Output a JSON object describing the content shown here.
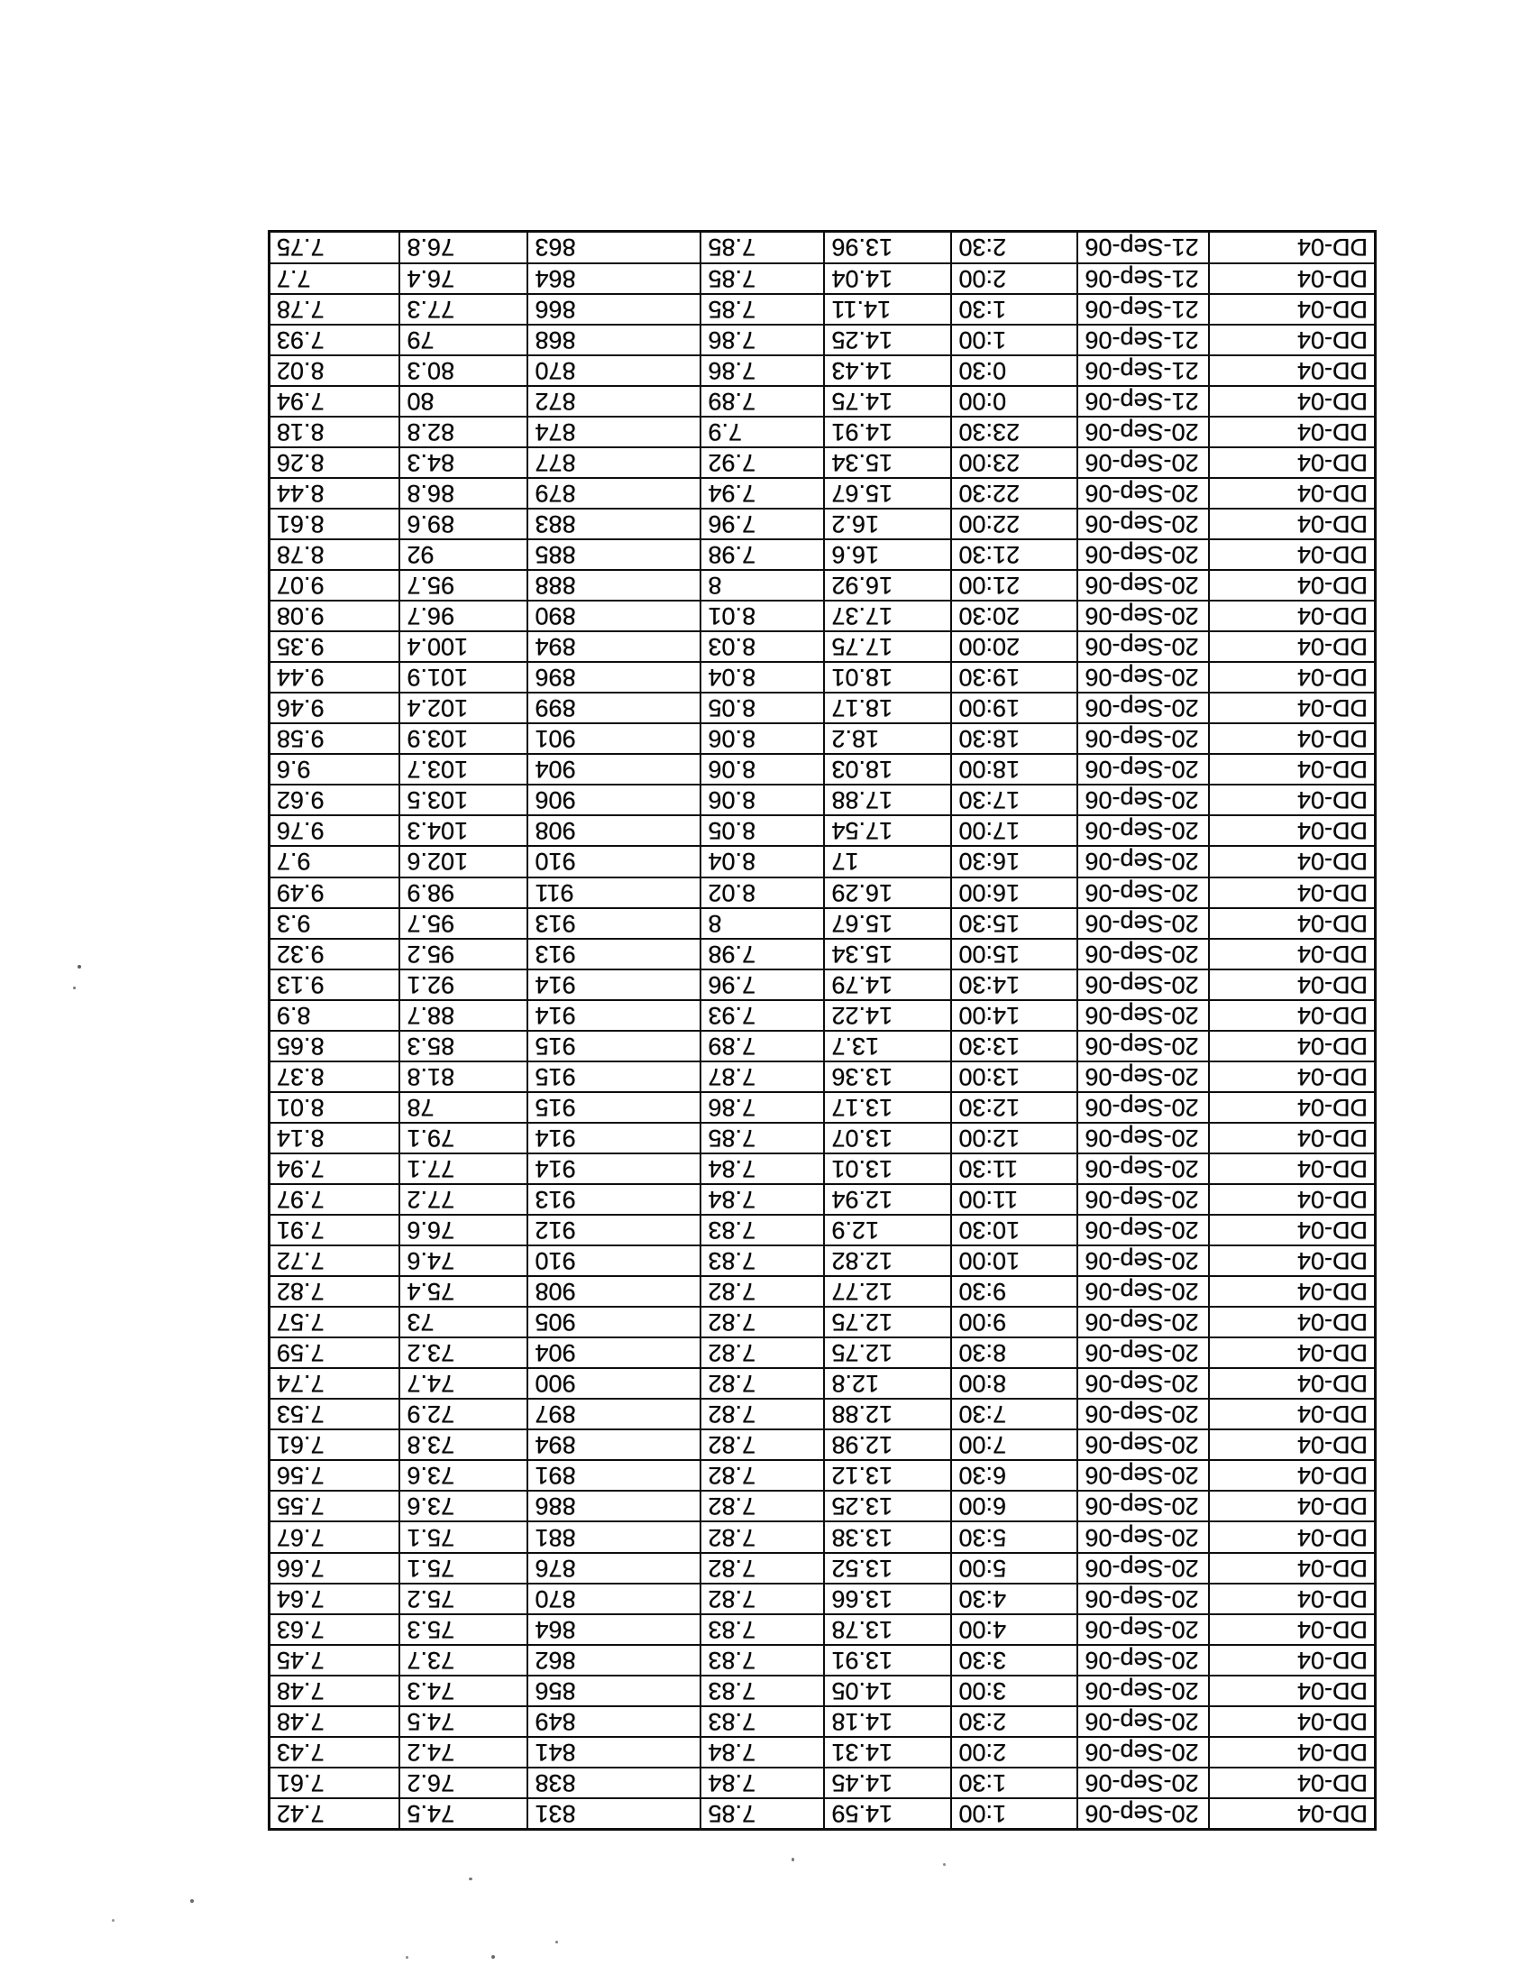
{
  "style": {
    "ink_color": "#161616",
    "paper_color": "#ffffff"
  },
  "table": {
    "orientation_note": "scanned upside down (rotated 180 degrees)",
    "site_label": "DD-04",
    "rows": [
      [
        "DD-04",
        "20-Sep-06",
        "1:00",
        "14.59",
        "7.85",
        "831",
        "74.5",
        "7.42"
      ],
      [
        "DD-04",
        "20-Sep-06",
        "1:30",
        "14.45",
        "7.84",
        "838",
        "76.2",
        "7.61"
      ],
      [
        "DD-04",
        "20-Sep-06",
        "2:00",
        "14.31",
        "7.84",
        "841",
        "74.2",
        "7.43"
      ],
      [
        "DD-04",
        "20-Sep-06",
        "2:30",
        "14.18",
        "7.83",
        "849",
        "74.5",
        "7.48"
      ],
      [
        "DD-04",
        "20-Sep-06",
        "3:00",
        "14.05",
        "7.83",
        "856",
        "74.3",
        "7.48"
      ],
      [
        "DD-04",
        "20-Sep-06",
        "3:30",
        "13.91",
        "7.83",
        "862",
        "73.7",
        "7.45"
      ],
      [
        "DD-04",
        "20-Sep-06",
        "4:00",
        "13.78",
        "7.83",
        "864",
        "75.3",
        "7.63"
      ],
      [
        "DD-04",
        "20-Sep-06",
        "4:30",
        "13.66",
        "7.82",
        "870",
        "75.2",
        "7.64"
      ],
      [
        "DD-04",
        "20-Sep-06",
        "5:00",
        "13.52",
        "7.82",
        "876",
        "75.1",
        "7.66"
      ],
      [
        "DD-04",
        "20-Sep-06",
        "5:30",
        "13.38",
        "7.82",
        "881",
        "75.1",
        "7.67"
      ],
      [
        "DD-04",
        "20-Sep-06",
        "6:00",
        "13.25",
        "7.82",
        "886",
        "73.6",
        "7.55"
      ],
      [
        "DD-04",
        "20-Sep-06",
        "6:30",
        "13.12",
        "7.82",
        "891",
        "73.6",
        "7.56"
      ],
      [
        "DD-04",
        "20-Sep-06",
        "7:00",
        "12.98",
        "7.82",
        "894",
        "73.8",
        "7.61"
      ],
      [
        "DD-04",
        "20-Sep-06",
        "7:30",
        "12.88",
        "7.82",
        "897",
        "72.9",
        "7.53"
      ],
      [
        "DD-04",
        "20-Sep-06",
        "8:00",
        "12.8",
        "7.82",
        "900",
        "74.7",
        "7.74"
      ],
      [
        "DD-04",
        "20-Sep-06",
        "8:30",
        "12.75",
        "7.82",
        "904",
        "73.2",
        "7.59"
      ],
      [
        "DD-04",
        "20-Sep-06",
        "9:00",
        "12.75",
        "7.82",
        "905",
        "73",
        "7.57"
      ],
      [
        "DD-04",
        "20-Sep-06",
        "9:30",
        "12.77",
        "7.82",
        "908",
        "75.4",
        "7.82"
      ],
      [
        "DD-04",
        "20-Sep-06",
        "10:00",
        "12.82",
        "7.83",
        "910",
        "74.6",
        "7.72"
      ],
      [
        "DD-04",
        "20-Sep-06",
        "10:30",
        "12.9",
        "7.83",
        "912",
        "76.6",
        "7.91"
      ],
      [
        "DD-04",
        "20-Sep-06",
        "11:00",
        "12.94",
        "7.84",
        "913",
        "77.2",
        "7.97"
      ],
      [
        "DD-04",
        "20-Sep-06",
        "11:30",
        "13.01",
        "7.84",
        "914",
        "77.1",
        "7.94"
      ],
      [
        "DD-04",
        "20-Sep-06",
        "12:00",
        "13.07",
        "7.85",
        "914",
        "79.1",
        "8.14"
      ],
      [
        "DD-04",
        "20-Sep-06",
        "12:30",
        "13.17",
        "7.86",
        "915",
        "78",
        "8.01"
      ],
      [
        "DD-04",
        "20-Sep-06",
        "13:00",
        "13.36",
        "7.87",
        "915",
        "81.8",
        "8.37"
      ],
      [
        "DD-04",
        "20-Sep-06",
        "13:30",
        "13.7",
        "7.89",
        "915",
        "85.3",
        "8.65"
      ],
      [
        "DD-04",
        "20-Sep-06",
        "14:00",
        "14.22",
        "7.93",
        "914",
        "88.7",
        "8.9"
      ],
      [
        "DD-04",
        "20-Sep-06",
        "14:30",
        "14.79",
        "7.96",
        "914",
        "92.1",
        "9.13"
      ],
      [
        "DD-04",
        "20-Sep-06",
        "15:00",
        "15.34",
        "7.98",
        "913",
        "95.2",
        "9.32"
      ],
      [
        "DD-04",
        "20-Sep-06",
        "15:30",
        "15.67",
        "8",
        "913",
        "95.7",
        "9.3"
      ],
      [
        "DD-04",
        "20-Sep-06",
        "16:00",
        "16.29",
        "8.02",
        "911",
        "98.9",
        "9.49"
      ],
      [
        "DD-04",
        "20-Sep-06",
        "16:30",
        "17",
        "8.04",
        "910",
        "102.6",
        "9.7"
      ],
      [
        "DD-04",
        "20-Sep-06",
        "17:00",
        "17.54",
        "8.05",
        "908",
        "104.3",
        "9.76"
      ],
      [
        "DD-04",
        "20-Sep-06",
        "17:30",
        "17.88",
        "8.06",
        "906",
        "103.5",
        "9.62"
      ],
      [
        "DD-04",
        "20-Sep-06",
        "18:00",
        "18.03",
        "8.06",
        "904",
        "103.7",
        "9.6"
      ],
      [
        "DD-04",
        "20-Sep-06",
        "18:30",
        "18.2",
        "8.06",
        "901",
        "103.9",
        "9.58"
      ],
      [
        "DD-04",
        "20-Sep-06",
        "19:00",
        "18.17",
        "8.05",
        "899",
        "102.4",
        "9.46"
      ],
      [
        "DD-04",
        "20-Sep-06",
        "19:30",
        "18.01",
        "8.04",
        "896",
        "101.9",
        "9.44"
      ],
      [
        "DD-04",
        "20-Sep-06",
        "20:00",
        "17.75",
        "8.03",
        "894",
        "100.4",
        "9.35"
      ],
      [
        "DD-04",
        "20-Sep-06",
        "20:30",
        "17.37",
        "8.01",
        "890",
        "96.7",
        "9.08"
      ],
      [
        "DD-04",
        "20-Sep-06",
        "21:00",
        "16.92",
        "8",
        "888",
        "95.7",
        "9.07"
      ],
      [
        "DD-04",
        "20-Sep-06",
        "21:30",
        "16.6",
        "7.98",
        "885",
        "92",
        "8.78"
      ],
      [
        "DD-04",
        "20-Sep-06",
        "22:00",
        "16.2",
        "7.96",
        "883",
        "89.6",
        "8.61"
      ],
      [
        "DD-04",
        "20-Sep-06",
        "22:30",
        "15.67",
        "7.94",
        "879",
        "86.8",
        "8.44"
      ],
      [
        "DD-04",
        "20-Sep-06",
        "23:00",
        "15.34",
        "7.92",
        "877",
        "84.3",
        "8.26"
      ],
      [
        "DD-04",
        "20-Sep-06",
        "23:30",
        "14.91",
        "7.9",
        "874",
        "82.8",
        "8.18"
      ],
      [
        "DD-04",
        "21-Sep-06",
        "0:00",
        "14.75",
        "7.89",
        "872",
        "80",
        "7.94"
      ],
      [
        "DD-04",
        "21-Sep-06",
        "0:30",
        "14.43",
        "7.86",
        "870",
        "80.3",
        "8.02"
      ],
      [
        "DD-04",
        "21-Sep-06",
        "1:00",
        "14.25",
        "7.86",
        "868",
        "79",
        "7.93"
      ],
      [
        "DD-04",
        "21-Sep-06",
        "1:30",
        "14.11",
        "7.85",
        "866",
        "77.3",
        "7.78"
      ],
      [
        "DD-04",
        "21-Sep-06",
        "2:00",
        "14.04",
        "7.85",
        "864",
        "76.4",
        "7.7"
      ],
      [
        "DD-04",
        "21-Sep-06",
        "2:30",
        "13.96",
        "7.85",
        "863",
        "76.8",
        "7.75"
      ]
    ]
  }
}
